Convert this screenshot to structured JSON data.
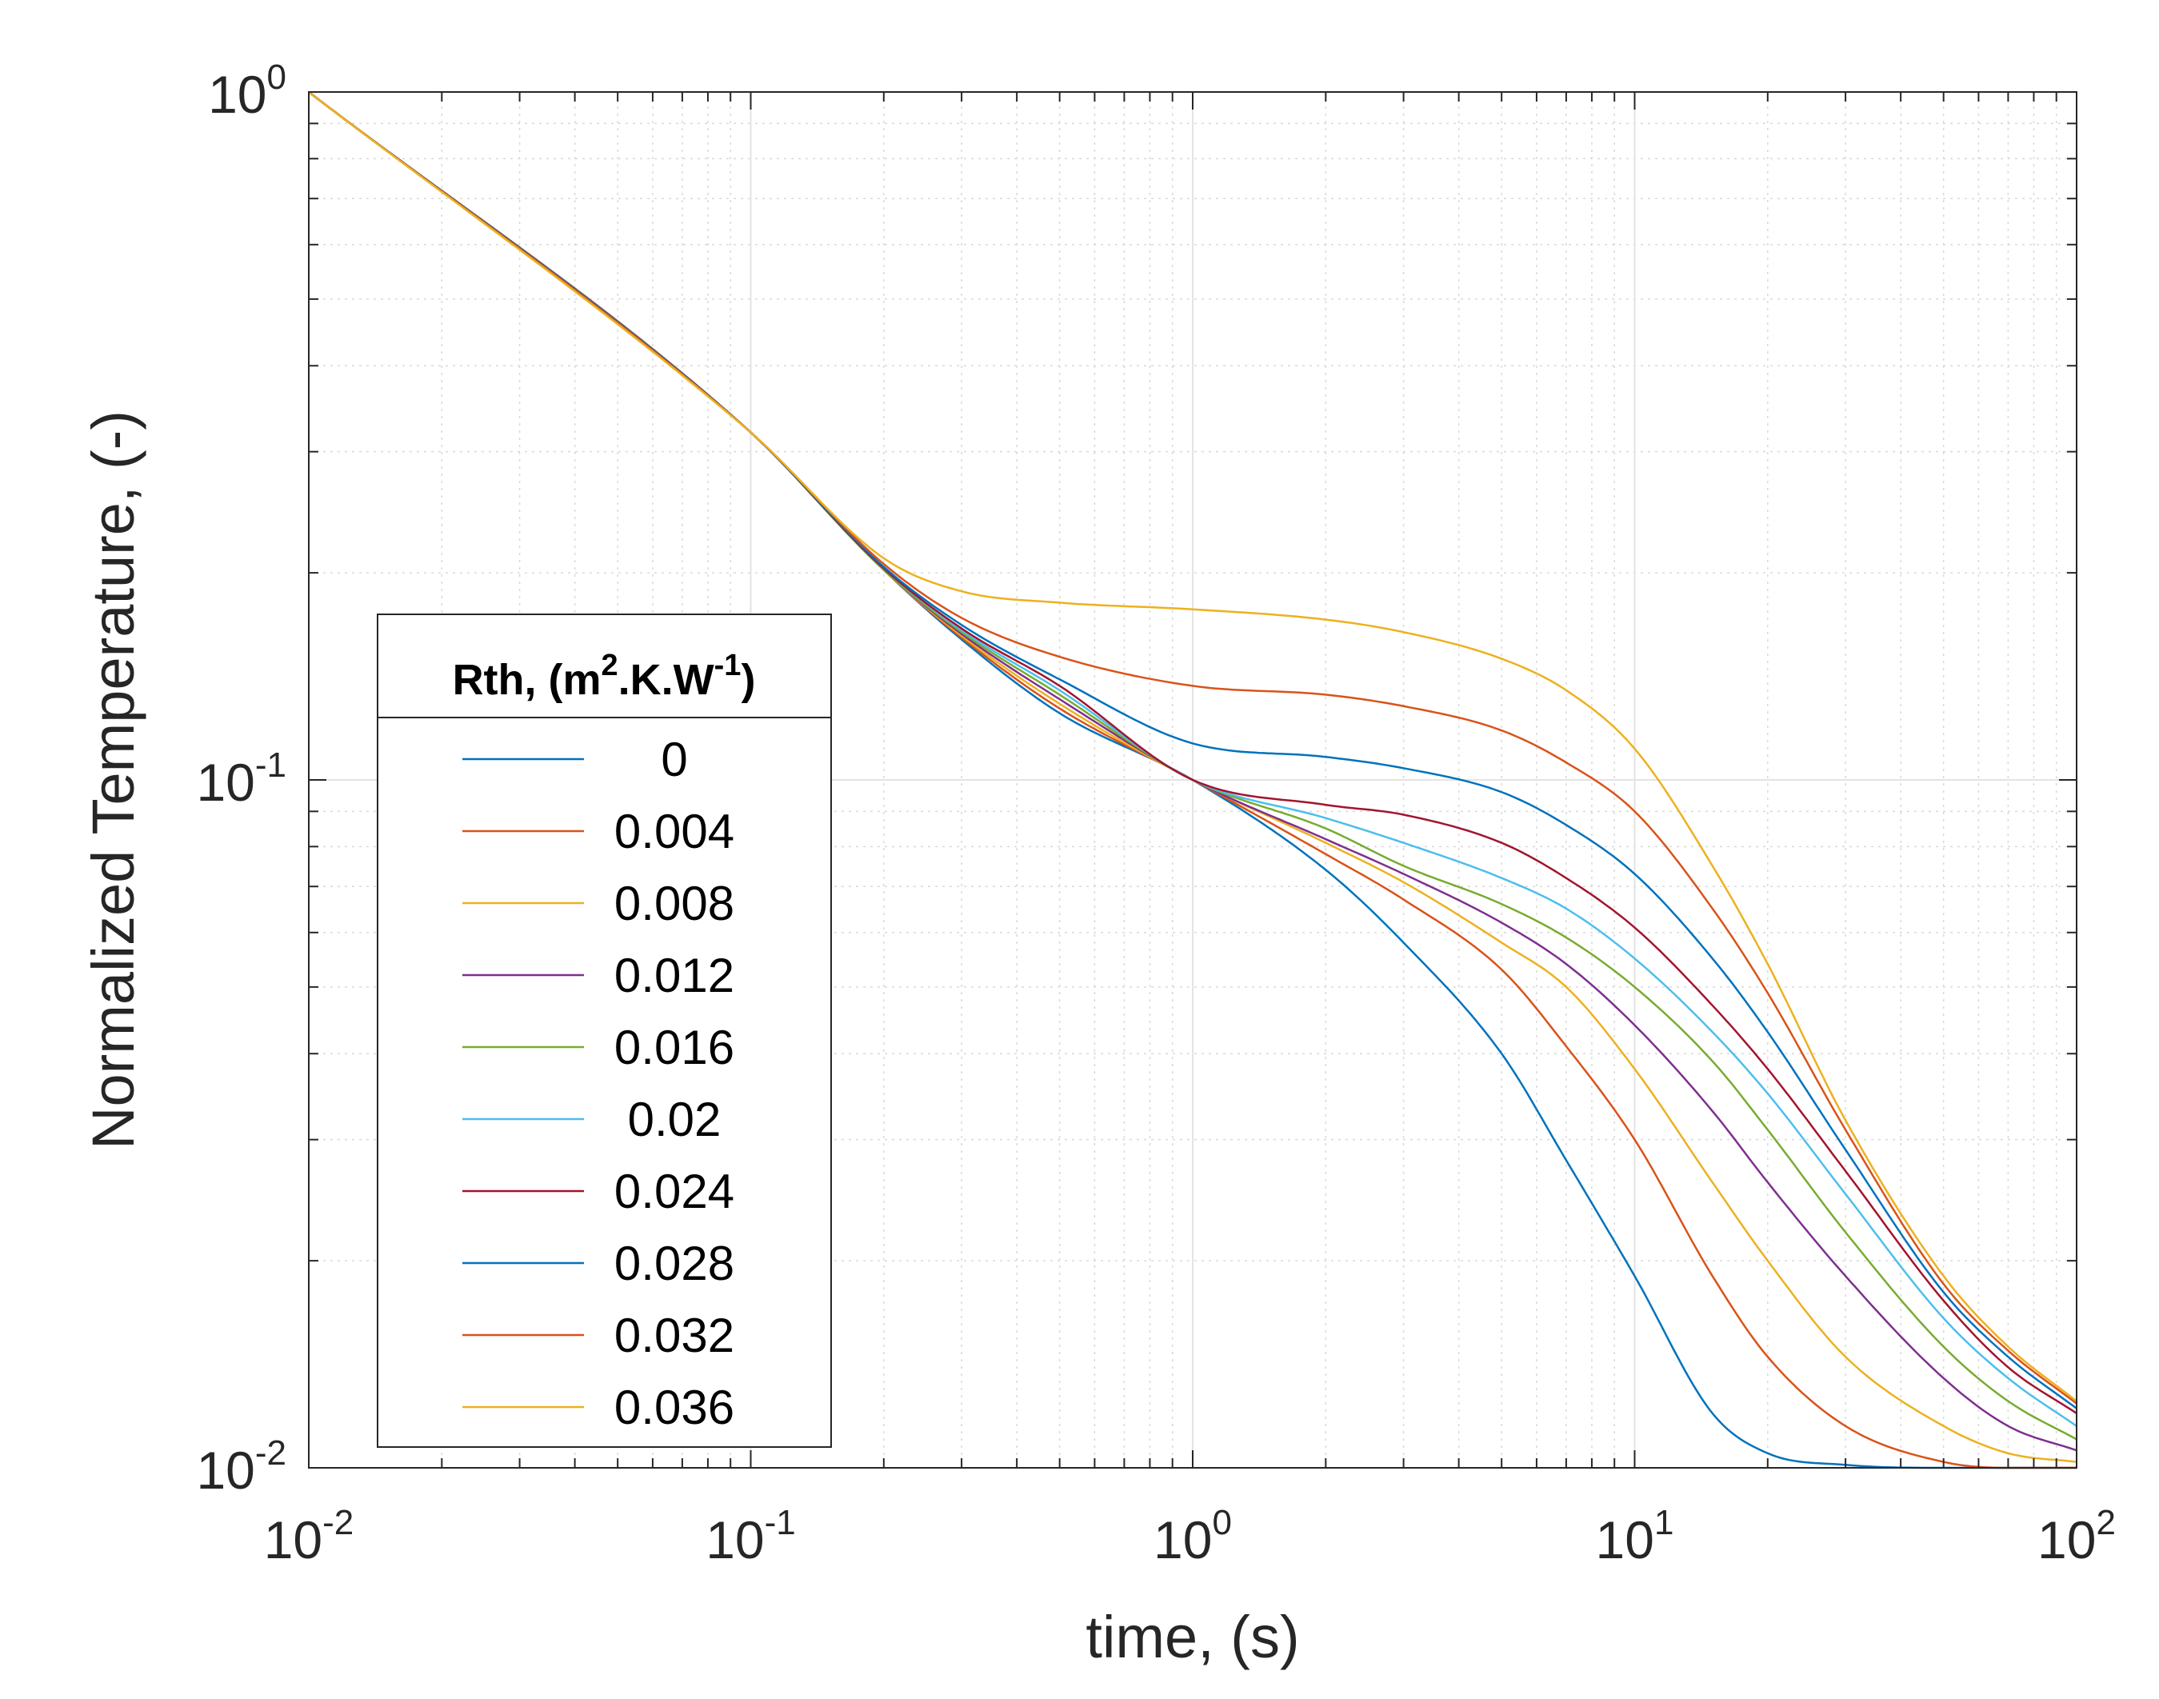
{
  "chart_data": {
    "type": "line",
    "xscale": "log",
    "yscale": "log",
    "xlim": [
      0.01,
      100
    ],
    "ylim": [
      0.01,
      1
    ],
    "grid": true,
    "minor_grid": true,
    "xlabel": "time, (s)",
    "ylabel": "Normalized Temperature, (-)",
    "x_ticks": [
      {
        "base": "10",
        "exp": "-2",
        "value": 0.01
      },
      {
        "base": "10",
        "exp": "-1",
        "value": 0.1
      },
      {
        "base": "10",
        "exp": "0",
        "value": 1
      },
      {
        "base": "10",
        "exp": "1",
        "value": 10
      },
      {
        "base": "10",
        "exp": "2",
        "value": 100
      }
    ],
    "y_ticks": [
      {
        "base": "10",
        "exp": "-2",
        "value": 0.01
      },
      {
        "base": "10",
        "exp": "-1",
        "value": 0.1
      },
      {
        "base": "10",
        "exp": "0",
        "value": 1
      }
    ],
    "legend": {
      "placement": "center-left",
      "title_main": "Rth, (m",
      "title_sup1": "2",
      "title_mid": ".K.W",
      "title_sup2": "-1",
      "title_end": ")"
    },
    "x": [
      0.01,
      0.1,
      0.2,
      0.3,
      0.5,
      1,
      2,
      3,
      5,
      7,
      10,
      15,
      20,
      30,
      50,
      70,
      100
    ],
    "series": [
      {
        "name": "0",
        "color": "#0072BD",
        "values": [
          1.0,
          0.32,
          0.202,
          0.16,
          0.125,
          0.1,
          0.074,
          0.058,
          0.04,
          0.028,
          0.019,
          0.012,
          0.0105,
          0.0101,
          0.01,
          0.01,
          0.01
        ]
      },
      {
        "name": "0.004",
        "color": "#D95319",
        "values": [
          1.0,
          0.32,
          0.202,
          0.161,
          0.127,
          0.1,
          0.078,
          0.067,
          0.053,
          0.041,
          0.03,
          0.019,
          0.0145,
          0.0115,
          0.0102,
          0.01,
          0.01
        ]
      },
      {
        "name": "0.008",
        "color": "#EDB120",
        "values": [
          1.0,
          0.32,
          0.202,
          0.162,
          0.129,
          0.1,
          0.081,
          0.071,
          0.058,
          0.05,
          0.038,
          0.026,
          0.02,
          0.0145,
          0.0115,
          0.0105,
          0.0102
        ]
      },
      {
        "name": "0.012",
        "color": "#7E2F8E",
        "values": [
          1.0,
          0.32,
          0.202,
          0.163,
          0.131,
          0.1,
          0.082,
          0.073,
          0.062,
          0.054,
          0.044,
          0.033,
          0.026,
          0.019,
          0.0135,
          0.0115,
          0.0106
        ]
      },
      {
        "name": "0.016",
        "color": "#77AC30",
        "values": [
          1.0,
          0.32,
          0.202,
          0.164,
          0.133,
          0.1,
          0.085,
          0.075,
          0.066,
          0.059,
          0.05,
          0.039,
          0.031,
          0.022,
          0.015,
          0.0125,
          0.011
        ]
      },
      {
        "name": "0.02",
        "color": "#4DBEEE",
        "values": [
          1.0,
          0.32,
          0.203,
          0.165,
          0.135,
          0.1,
          0.088,
          0.081,
          0.072,
          0.065,
          0.055,
          0.043,
          0.035,
          0.025,
          0.0165,
          0.0135,
          0.0115
        ]
      },
      {
        "name": "0.024",
        "color": "#A2142F",
        "values": [
          1.0,
          0.32,
          0.203,
          0.166,
          0.137,
          0.1,
          0.092,
          0.089,
          0.081,
          0.072,
          0.061,
          0.047,
          0.038,
          0.027,
          0.0175,
          0.014,
          0.012
        ]
      },
      {
        "name": "0.028",
        "color": "#0072BD",
        "values": [
          1.0,
          0.32,
          0.204,
          0.168,
          0.14,
          0.113,
          0.108,
          0.104,
          0.096,
          0.086,
          0.073,
          0.055,
          0.043,
          0.029,
          0.018,
          0.0145,
          0.0122
        ]
      },
      {
        "name": "0.032",
        "color": "#D95319",
        "values": [
          1.0,
          0.32,
          0.206,
          0.172,
          0.151,
          0.137,
          0.133,
          0.128,
          0.118,
          0.106,
          0.09,
          0.065,
          0.049,
          0.031,
          0.0185,
          0.0148,
          0.0124
        ]
      },
      {
        "name": "0.036",
        "color": "#EDB120",
        "values": [
          1.0,
          0.32,
          0.21,
          0.188,
          0.181,
          0.177,
          0.171,
          0.164,
          0.15,
          0.135,
          0.111,
          0.075,
          0.054,
          0.032,
          0.019,
          0.015,
          0.0125
        ]
      }
    ]
  }
}
